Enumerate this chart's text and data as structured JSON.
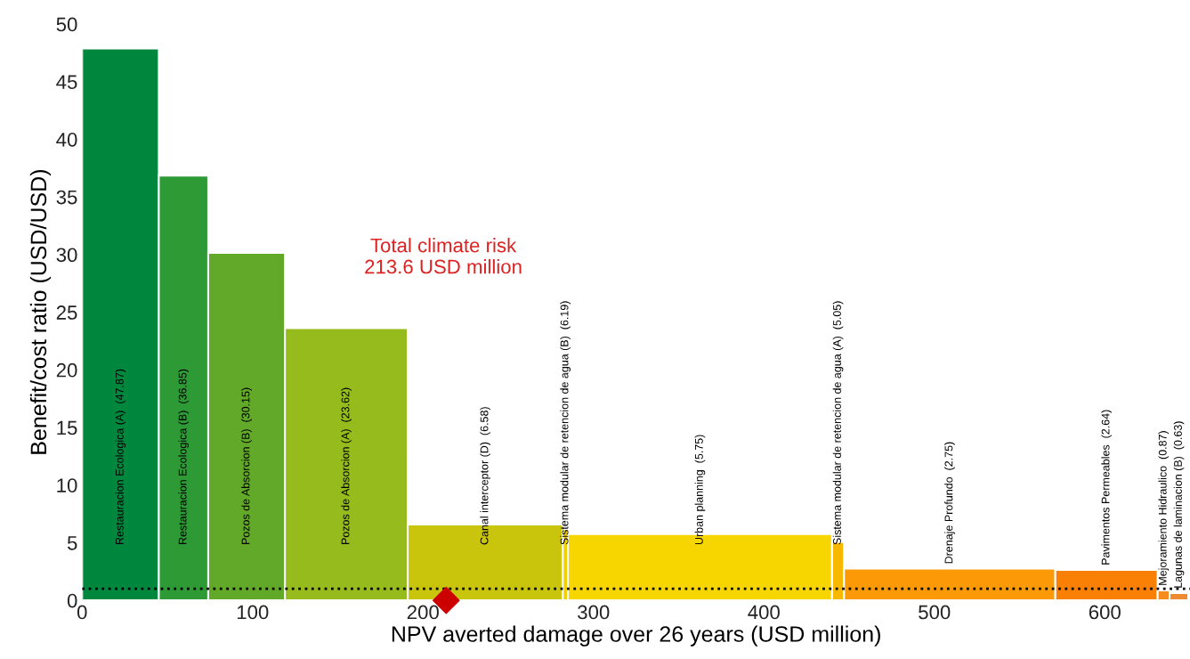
{
  "chart_data": {
    "type": "histogram",
    "xlabel": "NPV averted damage over 26 years (USD million)",
    "ylabel": "Benefit/cost ratio (USD/USD)",
    "bins": [
      0,
      45,
      74,
      119,
      191,
      282,
      285,
      440,
      447,
      571,
      631,
      638,
      649
    ],
    "values": [
      47.87,
      36.85,
      30.15,
      23.62,
      6.58,
      6.19,
      5.75,
      5.05,
      2.75,
      2.64,
      0.87,
      0.63
    ],
    "colors": [
      "#00873e",
      "#2e9a35",
      "#62a829",
      "#95bb1c",
      "#c9c40c",
      "#f5d000",
      "#f7d600",
      "#f8b800",
      "#fb9a06",
      "#fa7f05",
      "#f68b1e",
      "#f08a30"
    ],
    "value_labels": [
      "Restauracion Ecologica (A)  (47.87)",
      "Restauracion Ecologica (B)  (36.85)",
      "Pozos de Absorcion (B)  (30.15)",
      "Pozos de Absorcion (A)  (23.62)",
      "Canal interceptor (D)  (6.58)",
      "Sistema modular de retencion de agua (B)  (6.19)",
      "Urban planning  (5.75)",
      "Sistema modular de retencion de agua (A)  (5.05)",
      "Drenaje Profundo  (2.75)",
      "Pavimentos Permeables  (2.64)",
      "Mejoramiento Hidraulico  (0.87)",
      "Lagunas de laminacion (B)  (0.63)"
    ],
    "series": [
      {
        "type": "scatter",
        "x": [
          213.6
        ],
        "values": [
          0
        ],
        "color": "#cc0000"
      }
    ],
    "marker": "diamond",
    "annotations": [
      "Total climate risk\n213.6 USD million"
    ],
    "ref_lines": [
      {
        "axis": "y",
        "value": 1,
        "color": "#000000",
        "line_style": "dotted"
      }
    ],
    "xlim": [
      0,
      650
    ],
    "xticks": [
      0,
      100,
      200,
      300,
      400,
      500,
      600
    ],
    "ylim": [
      0,
      50
    ],
    "yticks": [
      0,
      5,
      10,
      15,
      20,
      25,
      30,
      35,
      40,
      45,
      50
    ],
    "grid": false,
    "legend": false
  }
}
